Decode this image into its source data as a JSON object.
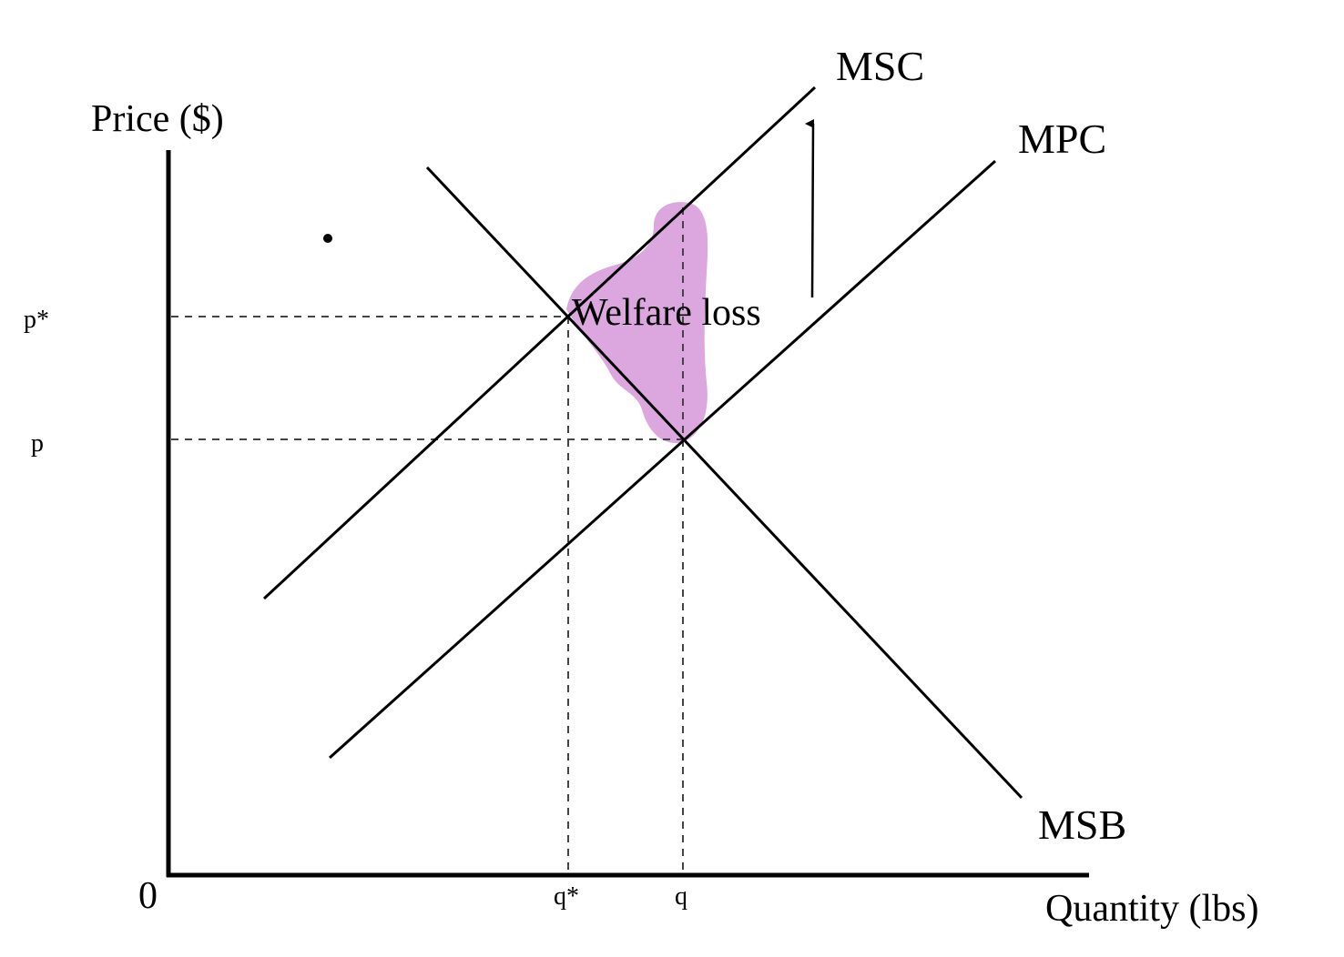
{
  "diagram": {
    "axes": {
      "y_label": "Price ($)",
      "x_label": "Quantity (lbs)",
      "origin_label": "0"
    },
    "price_levels": [
      {
        "id": "p-star",
        "label": "p*"
      },
      {
        "id": "p",
        "label": "p"
      }
    ],
    "quantity_levels": [
      {
        "id": "q-star",
        "label": "q*"
      },
      {
        "id": "q",
        "label": "q"
      }
    ],
    "curves": [
      {
        "id": "msc",
        "label": "MSC"
      },
      {
        "id": "mpc",
        "label": "MPC"
      },
      {
        "id": "msb",
        "label": "MSB"
      }
    ],
    "shaded_region": {
      "label": "Welfare loss",
      "color": "#dba7de"
    },
    "shift_arrow": {
      "direction": "up"
    }
  }
}
